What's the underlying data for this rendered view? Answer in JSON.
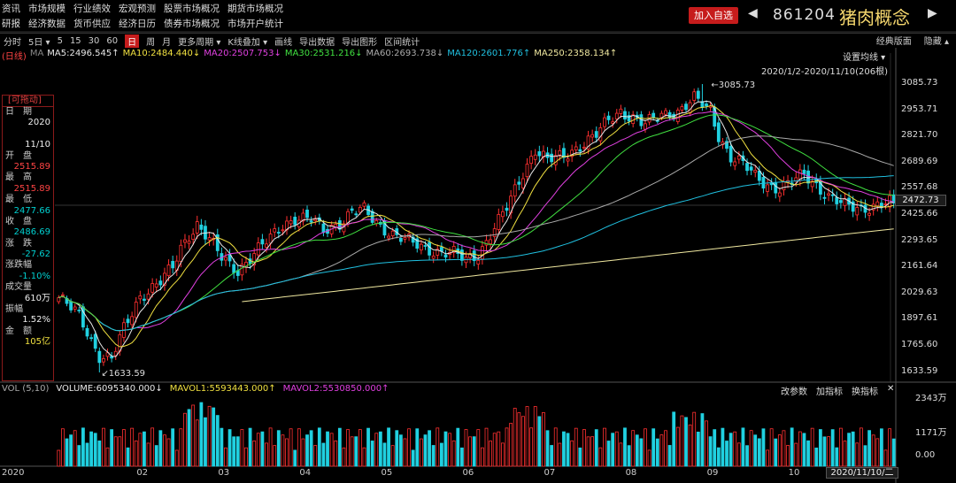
{
  "nav": {
    "row1": [
      "资讯",
      "市场规模",
      "行业绩效",
      "宏观预测",
      "股票市场概况",
      "期货市场概况"
    ],
    "row2": [
      "研报",
      "经济数据",
      "货币供应",
      "经济日历",
      "债券市场概况",
      "市场开户统计"
    ]
  },
  "header": {
    "add_label": "加入自选",
    "left_arrow": "◀",
    "right_arrow": "▶",
    "code": "861204",
    "name": "猪肉概念"
  },
  "toolbar": {
    "items": [
      "分时",
      "5日 ▾",
      "5",
      "15",
      "30",
      "60",
      "日",
      "周",
      "月",
      "更多周期 ▾",
      "K线叠加 ▾",
      "画线",
      "导出数据",
      "导出图形",
      "区间统计"
    ],
    "active_index": 6,
    "right": [
      "经典版面",
      "隐藏 ▴"
    ]
  },
  "ma_legend": {
    "prefix": "(日线)",
    "ma_label": "MA",
    "items": [
      {
        "text": "MA5:2496.545↑",
        "color": "#e8e8e8"
      },
      {
        "text": "MA10:2484.440↓",
        "color": "#f0e040"
      },
      {
        "text": "MA20:2507.753↓",
        "color": "#e040e0"
      },
      {
        "text": "MA30:2531.216↓",
        "color": "#40e040"
      },
      {
        "text": "MA60:2693.738↓",
        "color": "#aaaaaa"
      },
      {
        "text": "MA120:2601.776↑",
        "color": "#20c0e0"
      },
      {
        "text": "MA250:2358.134↑",
        "color": "#f0e8a0"
      }
    ]
  },
  "settings_label": "设置均线 ▾",
  "range_label": "2020/1/2-2020/11/10(206根)",
  "info_panel": {
    "header": "[可拖动]",
    "rows": [
      {
        "label": "日　期",
        "value": "2020",
        "cls": "white"
      },
      {
        "label": "",
        "value": "11/10",
        "cls": "white"
      },
      {
        "label": "开　盘",
        "value": "2515.89",
        "cls": "red"
      },
      {
        "label": "最　高",
        "value": "2515.89",
        "cls": "red"
      },
      {
        "label": "最　低",
        "value": "2477.66",
        "cls": "green"
      },
      {
        "label": "收　盘",
        "value": "2486.69",
        "cls": "green"
      },
      {
        "label": "涨　跌",
        "value": "-27.62",
        "cls": "green"
      },
      {
        "label": "涨跌幅",
        "value": "-1.10%",
        "cls": "green"
      },
      {
        "label": "成交量",
        "value": "610万",
        "cls": "white"
      },
      {
        "label": "振幅",
        "value": "1.52%",
        "cls": "white"
      },
      {
        "label": "金　额",
        "value": "105亿",
        "cls": "yellow"
      }
    ]
  },
  "y_axis": [
    "3085.73",
    "2953.71",
    "2821.70",
    "2689.69",
    "2557.68",
    "2425.66",
    "2293.65",
    "2161.64",
    "2029.63",
    "1897.61",
    "1765.60",
    "1633.59"
  ],
  "current_price": "2472.73",
  "annotations": {
    "high": "3085.73",
    "low": "1633.59"
  },
  "volume": {
    "prefix": "VOL (5,10)",
    "items": [
      {
        "text": "VOLUME:6095340.000↓",
        "color": "#e8e8e8"
      },
      {
        "text": "MAVOL1:5593443.000↑",
        "color": "#f0e040"
      },
      {
        "text": "MAVOL2:5530850.000↑",
        "color": "#e040e0"
      }
    ],
    "buttons": [
      "改参数",
      "加指标",
      "换指标",
      "✕"
    ],
    "y_axis": [
      "2343万",
      "1171万",
      "0.00"
    ]
  },
  "x_axis": [
    {
      "label": "2020",
      "month": 0
    },
    {
      "label": "02",
      "month": 1
    },
    {
      "label": "03",
      "month": 2
    },
    {
      "label": "04",
      "month": 3
    },
    {
      "label": "05",
      "month": 4
    },
    {
      "label": "06",
      "month": 5
    },
    {
      "label": "07",
      "month": 6
    },
    {
      "label": "08",
      "month": 7
    },
    {
      "label": "09",
      "month": 8
    },
    {
      "label": "10",
      "month": 9
    }
  ],
  "cursor_date": "2020/11/10/二",
  "chart_data": {
    "type": "candlestick",
    "title": "861204 猪肉概念",
    "ylim": [
      1633.59,
      3085.73
    ],
    "bars": 206,
    "high": 3085.73,
    "low": 1633.59,
    "last_close": 2486.69,
    "close_path": [
      [
        0,
        2010
      ],
      [
        5,
        1920
      ],
      [
        10,
        1720
      ],
      [
        13,
        1700
      ],
      [
        16,
        1850
      ],
      [
        20,
        2020
      ],
      [
        25,
        2090
      ],
      [
        28,
        2160
      ],
      [
        30,
        2260
      ],
      [
        32,
        2330
      ],
      [
        34,
        2380
      ],
      [
        37,
        2300
      ],
      [
        40,
        2210
      ],
      [
        44,
        2150
      ],
      [
        48,
        2230
      ],
      [
        52,
        2310
      ],
      [
        55,
        2380
      ],
      [
        58,
        2410
      ],
      [
        62,
        2400
      ],
      [
        65,
        2350
      ],
      [
        70,
        2400
      ],
      [
        72,
        2440
      ],
      [
        75,
        2450
      ],
      [
        78,
        2390
      ],
      [
        82,
        2330
      ],
      [
        86,
        2290
      ],
      [
        90,
        2260
      ],
      [
        94,
        2240
      ],
      [
        97,
        2230
      ],
      [
        100,
        2200
      ],
      [
        103,
        2230
      ],
      [
        106,
        2330
      ],
      [
        110,
        2460
      ],
      [
        114,
        2640
      ],
      [
        117,
        2760
      ],
      [
        120,
        2700
      ],
      [
        124,
        2720
      ],
      [
        128,
        2780
      ],
      [
        132,
        2830
      ],
      [
        135,
        2900
      ],
      [
        138,
        2950
      ],
      [
        141,
        2920
      ],
      [
        144,
        2880
      ],
      [
        148,
        2930
      ],
      [
        152,
        2950
      ],
      [
        156,
        3010
      ],
      [
        160,
        2950
      ],
      [
        162,
        2830
      ],
      [
        165,
        2720
      ],
      [
        168,
        2680
      ],
      [
        171,
        2620
      ],
      [
        174,
        2580
      ],
      [
        177,
        2560
      ],
      [
        180,
        2590
      ],
      [
        183,
        2630
      ],
      [
        186,
        2580
      ],
      [
        189,
        2520
      ],
      [
        193,
        2470
      ],
      [
        197,
        2460
      ],
      [
        201,
        2480
      ],
      [
        205,
        2487
      ]
    ]
  }
}
